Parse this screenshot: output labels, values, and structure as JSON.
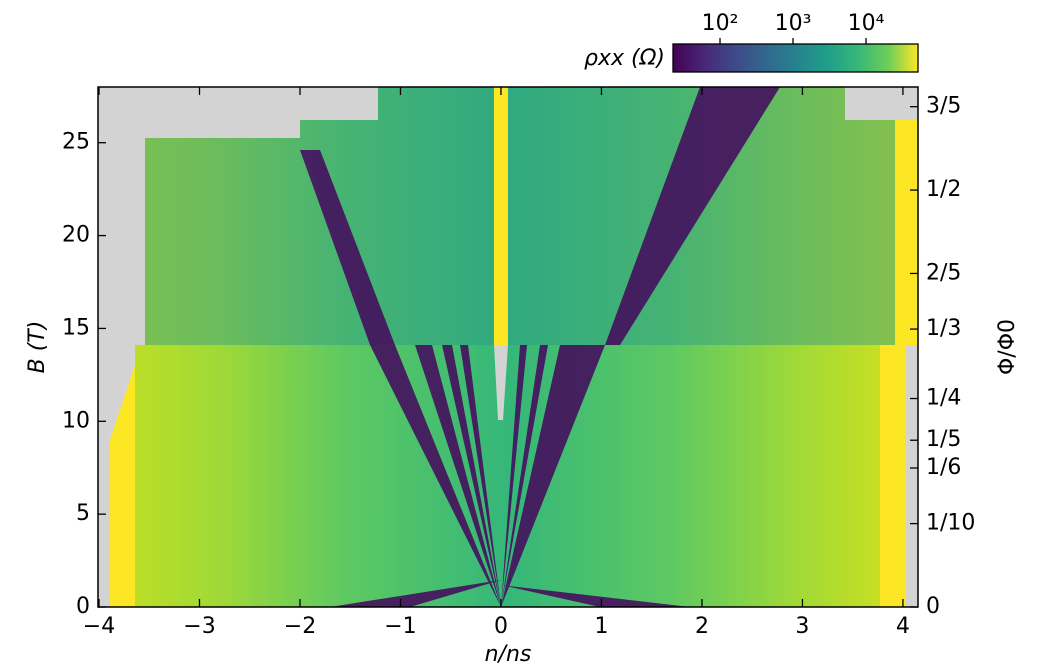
{
  "chart_data": {
    "type": "heatmap",
    "xlabel": "n/ns",
    "ylabel": "B (T)",
    "y2label": "Φ/Φ0",
    "xlim": [
      -4.01,
      4.15
    ],
    "xticks": [
      {
        "value": -4,
        "label": "−4"
      },
      {
        "value": -3,
        "label": "−3"
      },
      {
        "value": -2,
        "label": "−2"
      },
      {
        "value": -1,
        "label": "−1"
      },
      0,
      1,
      2,
      3,
      4
    ],
    "ylim": [
      0,
      28
    ],
    "yticks": [
      0,
      5,
      10,
      15,
      20,
      25
    ],
    "y2lim": [
      0,
      0.6236
    ],
    "y2ticks": [
      0,
      {
        "value": 0.1,
        "label": "1/10"
      },
      {
        "value": 0.1667,
        "label": "1/6"
      },
      {
        "value": 0.2,
        "label": "1/5"
      },
      {
        "value": 0.25,
        "label": "1/4"
      },
      {
        "value": 0.3333,
        "label": "1/3"
      },
      {
        "value": 0.4,
        "label": "2/5"
      },
      {
        "value": 0.5,
        "label": "1/2"
      },
      {
        "value": 0.6,
        "label": "3/5"
      }
    ],
    "colorbar": {
      "label": "ρxx (Ω)",
      "log": true,
      "colormap": "viridis",
      "lim": [
        22.7,
        51500
      ],
      "ticks": [
        {
          "value": 100,
          "label": "10²"
        },
        {
          "value": 1000,
          "label": "10³"
        },
        {
          "value": 10000,
          "label": "10⁴"
        }
      ]
    }
  }
}
